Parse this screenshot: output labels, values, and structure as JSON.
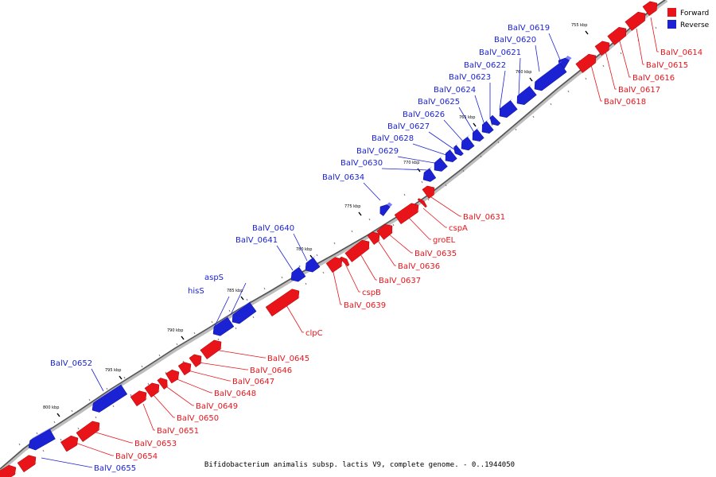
{
  "title": "Bifidobacterium animalis subsp. lactis V9, complete genome. - 0..1944050",
  "legend": {
    "forward_label": "Forward",
    "forward_color": "#e8141a",
    "reverse_label": "Reverse",
    "reverse_color": "#1a22d4"
  },
  "kbp_marks": [
    "755 kbp",
    "760 kbp",
    "765 kbp",
    "770 kbp",
    "775 kbp",
    "780 kbp",
    "785 kbp",
    "790 kbp",
    "795 kbp",
    "800 kbp"
  ],
  "forward_genes": [
    "BalV_0614",
    "BalV_0615",
    "BalV_0616",
    "BalV_0617",
    "BalV_0618",
    "BalV_0631",
    "cspA",
    "groEL",
    "BalV_0635",
    "BalV_0636",
    "BalV_0637",
    "cspB",
    "BalV_0639",
    "clpC",
    "BalV_0645",
    "BalV_0646",
    "BalV_0647",
    "BalV_0648",
    "BalV_0649",
    "BalV_0650",
    "BalV_0651",
    "BalV_0653",
    "BalV_0654"
  ],
  "reverse_genes": [
    "BalV_0619",
    "BalV_0620",
    "BalV_0621",
    "BalV_0622",
    "BalV_0623",
    "BalV_0624",
    "BalV_0625",
    "BalV_0626",
    "BalV_0627",
    "BalV_0628",
    "BalV_0629",
    "BalV_0630",
    "BalV_0634",
    "BalV_0640",
    "BalV_0641",
    "aspS",
    "hisS",
    "BalV_0652",
    "BalV_0655"
  ]
}
